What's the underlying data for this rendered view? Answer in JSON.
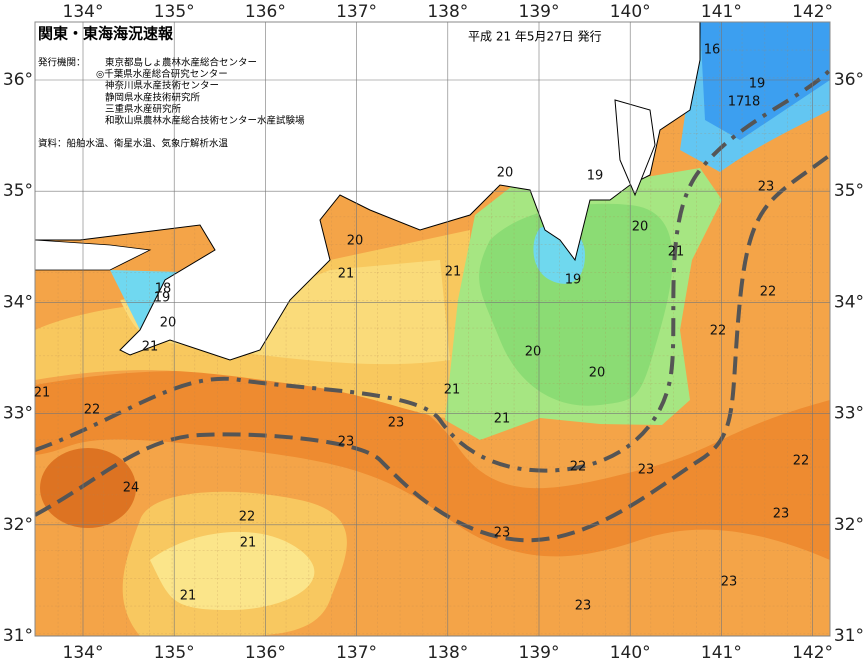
{
  "header": {
    "title": "関東・東海海況速報",
    "date": "平成 21 年5月27日 発行",
    "issuer_label": "発行機関：",
    "issuers": [
      "東京都島しょ農林水産総合センター",
      "◎千葉県水産総合研究センター",
      "神奈川県水産技術センター",
      "静岡県水産技術研究所",
      "三重県水産研究所",
      "和歌山県農林水産総合技術センター水産試験場"
    ],
    "source": "資料：船舶水温、衛星水温、気象庁解析水温"
  },
  "map": {
    "lon_ticks": [
      {
        "value": 134,
        "label": "134°"
      },
      {
        "value": 135,
        "label": "135°"
      },
      {
        "value": 136,
        "label": "136°"
      },
      {
        "value": 137,
        "label": "137°"
      },
      {
        "value": 138,
        "label": "138°"
      },
      {
        "value": 139,
        "label": "139°"
      },
      {
        "value": 140,
        "label": "140°"
      },
      {
        "value": 141,
        "label": "141°"
      },
      {
        "value": 142,
        "label": "142°"
      }
    ],
    "lat_ticks": [
      {
        "value": 36,
        "label": "36°"
      },
      {
        "value": 35,
        "label": "35°"
      },
      {
        "value": 34,
        "label": "34°"
      },
      {
        "value": 33,
        "label": "33°"
      },
      {
        "value": 32,
        "label": "32°"
      },
      {
        "value": 31,
        "label": "31°"
      }
    ],
    "contour_labels": [
      "16",
      "19",
      "17",
      "18",
      "20",
      "19",
      "20",
      "21",
      "18",
      "19",
      "20",
      "21",
      "21",
      "19",
      "20",
      "21",
      "23",
      "22",
      "22",
      "20",
      "20",
      "21",
      "21",
      "23",
      "23",
      "22",
      "21",
      "24",
      "22",
      "23",
      "22",
      "23",
      "22",
      "21",
      "21",
      "23",
      "23",
      "23"
    ]
  }
}
